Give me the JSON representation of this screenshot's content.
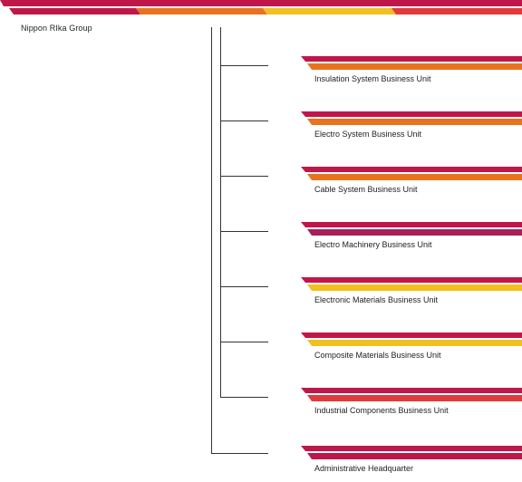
{
  "root": {
    "label": "Nippon RIka Group"
  },
  "colors": {
    "crimson": "#c0174a",
    "orange": "#e8731e",
    "yellow": "#f0c020",
    "red": "#e03a3a",
    "purple": "#a8205a",
    "line": "#333333"
  },
  "units": [
    {
      "label": "Insulation System Business Unit",
      "stripe_top": "#c0174a",
      "stripe_bottom": "#e8731e"
    },
    {
      "label": "Electro System Business Unit",
      "stripe_top": "#c0174a",
      "stripe_bottom": "#e8731e"
    },
    {
      "label": "Cable System Business Unit",
      "stripe_top": "#c0174a",
      "stripe_bottom": "#e8731e"
    },
    {
      "label": "Electro Machinery Business Unit",
      "stripe_top": "#c0174a",
      "stripe_bottom": "#a8205a"
    },
    {
      "label": "Electronic Materials Business Unit",
      "stripe_top": "#c0174a",
      "stripe_bottom": "#f0c020"
    },
    {
      "label": "Composite Materials Business Unit",
      "stripe_top": "#c0174a",
      "stripe_bottom": "#f0c020"
    },
    {
      "label": "Industrial Components Business Unit",
      "stripe_top": "#c0174a",
      "stripe_bottom": "#e03a3a"
    },
    {
      "label": "Administrative Headquarter",
      "stripe_top": "#c0174a",
      "stripe_bottom": "#c0174a"
    }
  ]
}
